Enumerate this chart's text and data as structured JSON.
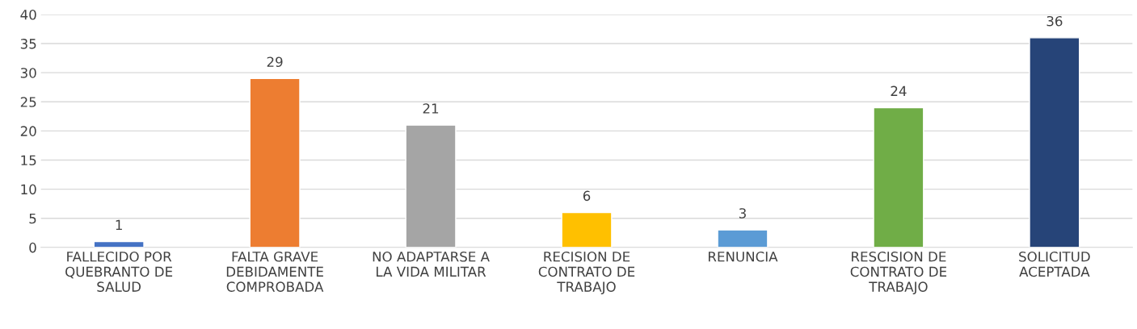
{
  "chart_data": {
    "type": "bar",
    "categories": [
      "FALLECIDO POR\nQUEBRANTO DE\nSALUD",
      "FALTA GRAVE\nDEBIDAMENTE\nCOMPROBADA",
      "NO ADAPTARSE A\nLA VIDA MILITAR",
      "RECISION DE\nCONTRATO DE\nTRABAJO",
      "RENUNCIA",
      "RESCISION DE\nCONTRATO DE\nTRABAJO",
      "SOLICITUD\nACEPTADA"
    ],
    "values": [
      1,
      29,
      21,
      6,
      3,
      24,
      36
    ],
    "colors": [
      "#4472c4",
      "#ed7d31",
      "#a5a5a5",
      "#ffc000",
      "#5b9bd5",
      "#70ad47",
      "#264478"
    ],
    "ylim": [
      0,
      40
    ],
    "yticks": [
      0,
      5,
      10,
      15,
      20,
      25,
      30,
      35,
      40
    ],
    "grid": "y",
    "data_labels": true
  }
}
